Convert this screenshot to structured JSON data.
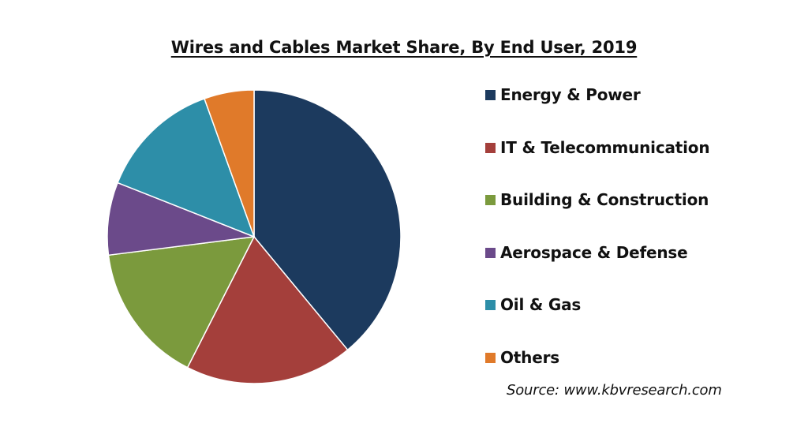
{
  "chart_data": {
    "type": "pie",
    "title": "Wires and Cables Market Share, By End User, 2019",
    "categories": [
      "Energy & Power",
      "IT & Telecommunication",
      "Building & Construction",
      "Aerospace & Defense",
      "Oil & Gas",
      "Others"
    ],
    "values": [
      39,
      18.5,
      15.5,
      8,
      13.5,
      5.5
    ],
    "colors": [
      "#1c3a5e",
      "#a43f3b",
      "#7b9a3d",
      "#6b4a8a",
      "#2d8ea8",
      "#e07a2a"
    ],
    "start_angle_deg": 0,
    "direction": "clockwise",
    "legend_position": "right"
  },
  "source": "Source: www.kbvresearch.com"
}
